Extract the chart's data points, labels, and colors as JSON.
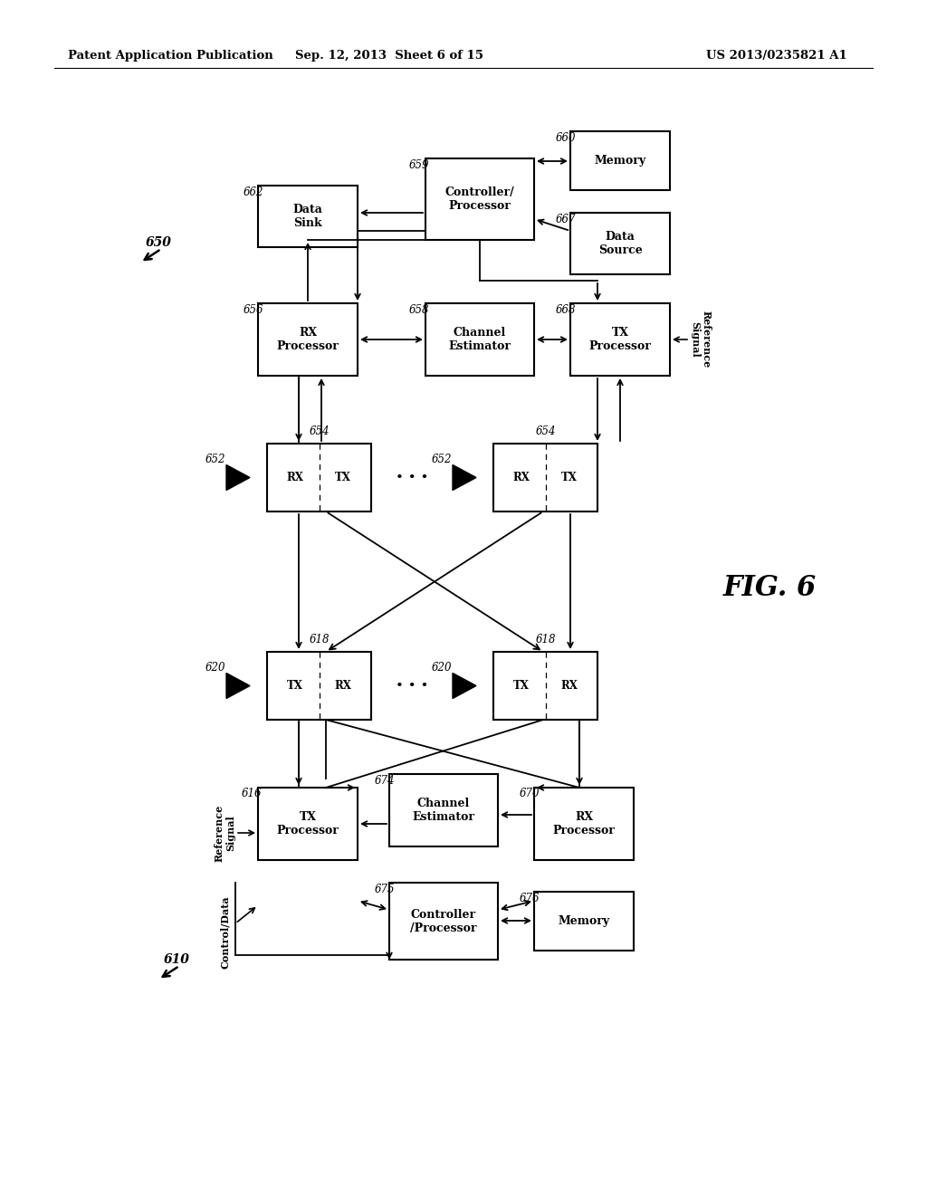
{
  "bg_color": "#ffffff",
  "header_left": "Patent Application Publication",
  "header_center": "Sep. 12, 2013  Sheet 6 of 15",
  "header_right": "US 2013/0235821 A1",
  "fig_label": "FIG. 6"
}
